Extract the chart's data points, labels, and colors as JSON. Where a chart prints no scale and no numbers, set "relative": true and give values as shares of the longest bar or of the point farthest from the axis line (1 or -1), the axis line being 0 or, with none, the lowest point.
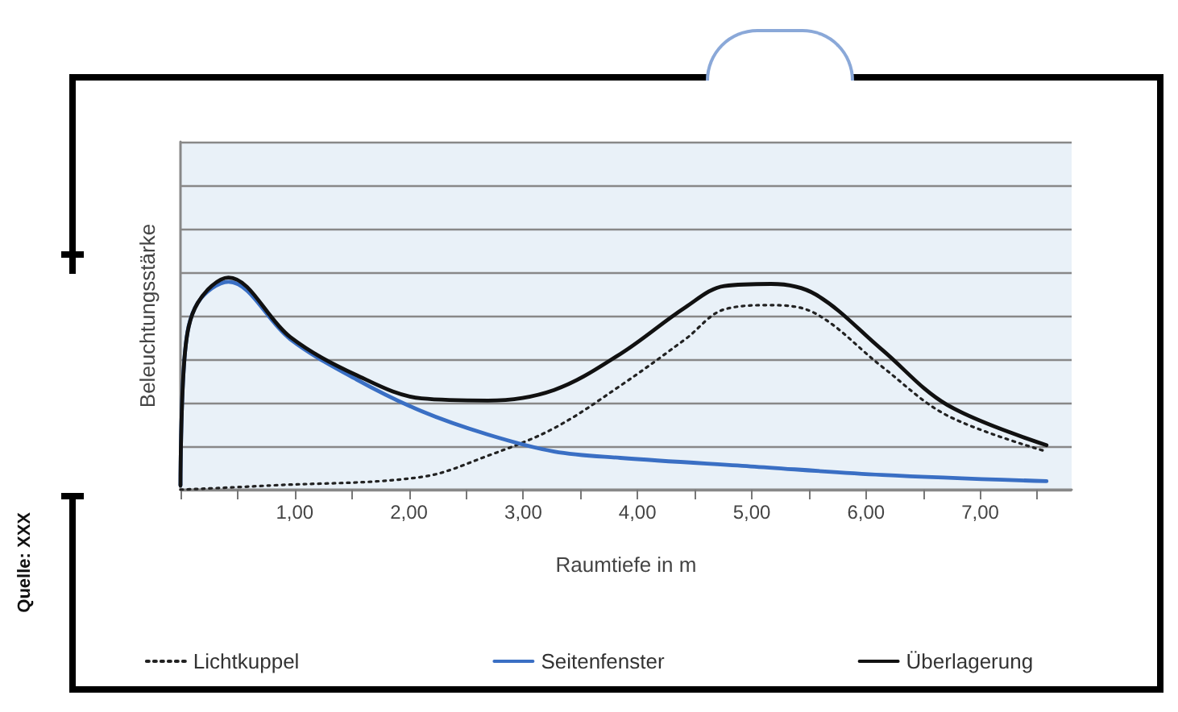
{
  "chart_data": {
    "type": "line",
    "relative": true,
    "ylabel": "Beleuchtungsstärke",
    "xlabel": "Raumtiefe in m",
    "annotations": [
      "Quelle: XXX"
    ],
    "xlim": [
      0,
      7.8
    ],
    "xticks": [
      {
        "value": 0,
        "label": null
      },
      {
        "value": 0.5,
        "label": null
      },
      {
        "value": 1,
        "label": "1,00"
      },
      {
        "value": 1.5,
        "label": null
      },
      {
        "value": 2,
        "label": "2,00"
      },
      {
        "value": 2.5,
        "label": null
      },
      {
        "value": 3,
        "label": "3,00"
      },
      {
        "value": 3.5,
        "label": null
      },
      {
        "value": 4,
        "label": "4,00"
      },
      {
        "value": 4.5,
        "label": null
      },
      {
        "value": 5,
        "label": "5,00"
      },
      {
        "value": 5.5,
        "label": null
      },
      {
        "value": 6,
        "label": "6,00"
      },
      {
        "value": 6.5,
        "label": null
      },
      {
        "value": 7,
        "label": "7,00"
      },
      {
        "value": 7.5,
        "label": null
      }
    ],
    "grid": "y",
    "legend": "bottom",
    "marker": "none",
    "series": [
      {
        "name": "Lichtkuppel",
        "color": "#222222",
        "line_style": "dotted",
        "x": [
          0,
          0.79,
          2.11,
          2.69,
          3.27,
          3.85,
          4.42,
          4.76,
          5.17,
          5.56,
          6.14,
          6.71,
          7.58
        ],
        "values": [
          0,
          0.02,
          0.06,
          0.16,
          0.29,
          0.49,
          0.71,
          0.85,
          0.87,
          0.83,
          0.58,
          0.35,
          0.18
        ]
      },
      {
        "name": "Seitenfenster",
        "color": "#3a6fc4",
        "line_style": "solid",
        "x": [
          0,
          0.04,
          0.15,
          0.42,
          0.96,
          1.54,
          2.11,
          2.69,
          3.27,
          3.85,
          4.99,
          6.14,
          7.58
        ],
        "values": [
          0.02,
          0.65,
          0.88,
          0.98,
          0.71,
          0.52,
          0.37,
          0.26,
          0.18,
          0.15,
          0.11,
          0.07,
          0.04
        ]
      },
      {
        "name": "Überlagerung",
        "color": "#111111",
        "line_style": "solid",
        "x": [
          0,
          0.04,
          0.15,
          0.42,
          0.96,
          1.54,
          2.11,
          2.69,
          3.27,
          3.85,
          4.42,
          4.76,
          5.17,
          5.56,
          6.14,
          6.71,
          7.58
        ],
        "values": [
          0.02,
          0.65,
          0.88,
          1,
          0.72,
          0.54,
          0.43,
          0.42,
          0.47,
          0.64,
          0.86,
          0.96,
          0.97,
          0.92,
          0.66,
          0.4,
          0.21
        ]
      }
    ]
  }
}
